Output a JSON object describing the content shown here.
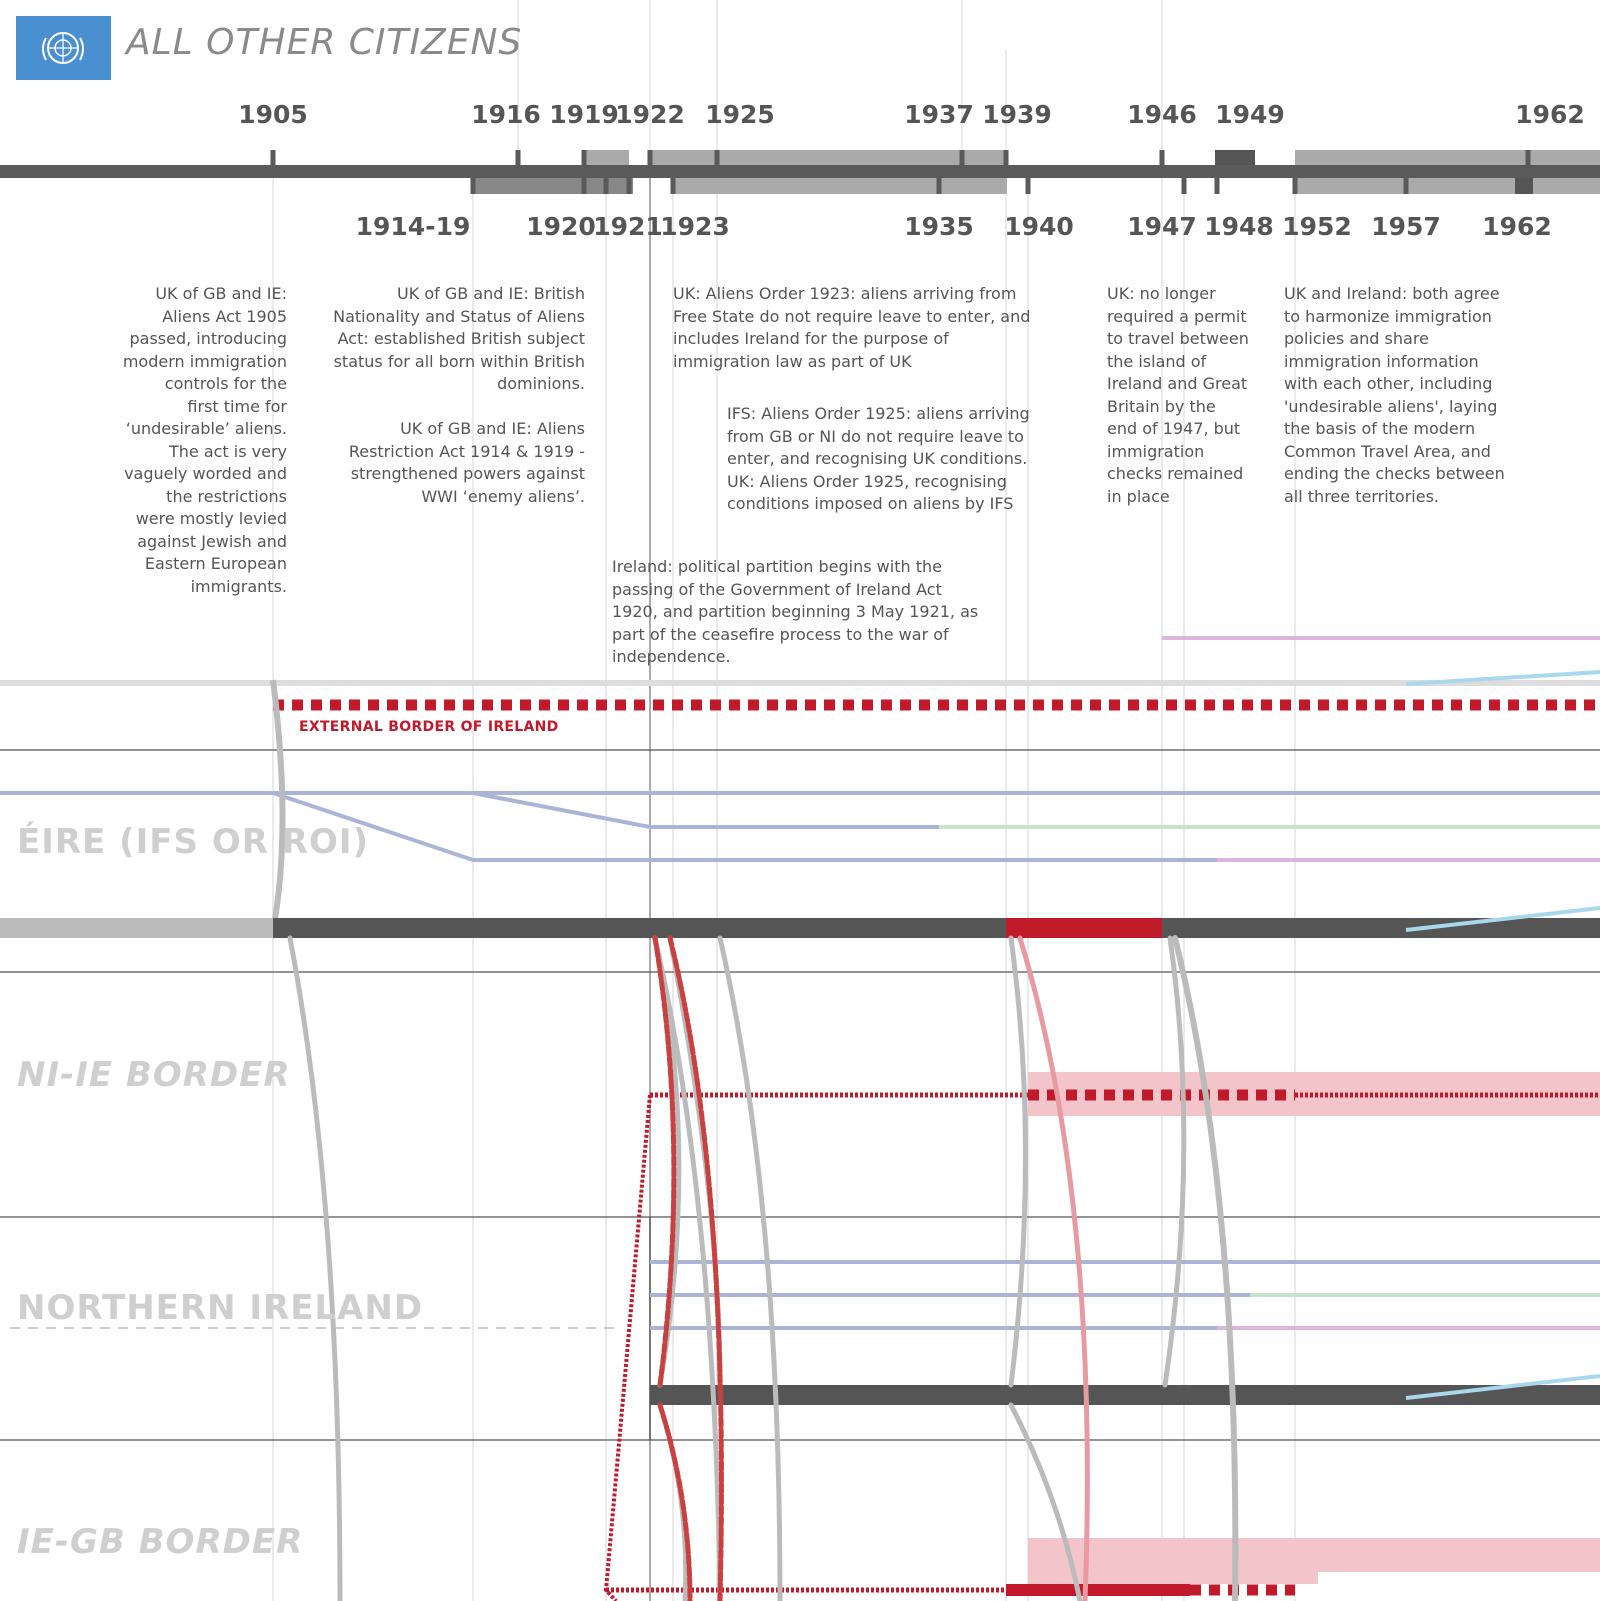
{
  "header": {
    "title": "ALL OTHER CITIZENS",
    "logo_icon": "un-emblem-icon",
    "logo_color": "#4a90d0"
  },
  "timeline": {
    "years_top": [
      "1905",
      "1916",
      "1919",
      "1922",
      "1925",
      "1937",
      "1939",
      "1946",
      "1949",
      "1962"
    ],
    "years_bottom": [
      "1914-19",
      "1920",
      "1921",
      "1923",
      "1935",
      "1940",
      "1947",
      "1948",
      "1952",
      "1957",
      "1962"
    ]
  },
  "notes": {
    "n1905": [
      "UK of GB and IE:",
      "Aliens Act 1905",
      "passed, introducing",
      "modern immigration",
      "controls for the",
      "first time for",
      "‘undesirable’ aliens.",
      "The act is very",
      "vaguely worded and",
      "the restrictions",
      "were mostly levied",
      "against Jewish and",
      "Eastern European",
      "immigrants."
    ],
    "n1914a": [
      "UK of GB and IE: British",
      "Nationality and Status of Aliens",
      "Act: established British subject",
      "status for all born within British",
      "dominions."
    ],
    "n1914b": [
      "UK of GB and IE: Aliens",
      "Restriction Act 1914 & 1919 -",
      "strengthened powers against",
      "WWI ‘enemy aliens’."
    ],
    "n1923": [
      "UK: Aliens Order 1923: aliens arriving from",
      "Free State do not require leave to enter, and",
      "includes Ireland for the purpose of",
      "immigration law as part of UK"
    ],
    "n1925": [
      "IFS: Aliens Order 1925: aliens arriving",
      "from GB or NI do not require leave to",
      "enter, and recognising UK conditions.",
      "UK: Aliens Order 1925, recognising",
      "conditions imposed on aliens by IFS"
    ],
    "n1920": [
      "Ireland: political partition begins with the",
      "passing of the Government of Ireland Act",
      "1920, and partition beginning 3 May 1921, as",
      "part of the ceasefire process to the war of",
      "independence."
    ],
    "n1947": [
      "UK: no longer",
      "required a permit",
      "to travel between",
      "the island of",
      "Ireland and Great",
      "Britain by the",
      "end of 1947, but",
      "immigration",
      "checks remained",
      "in place"
    ],
    "n1952": [
      "UK and Ireland: both agree",
      "to harmonize immigration",
      "policies and share",
      "immigration information",
      "with each other, including",
      "'undesirable aliens', laying",
      "the basis of the modern",
      "Common Travel Area, and",
      "ending the checks between",
      "all three territories."
    ]
  },
  "regions": {
    "external": "EXTERNAL BORDER OF IRELAND",
    "eire": "ÉIRE (IFS OR ROI)",
    "ni_ie": "NI-IE BORDER",
    "ni": "NORTHERN IRELAND",
    "ie_gb": "IE-GB BORDER"
  },
  "colors": {
    "axis": "#5a5a5a",
    "band": "#aaaaaa",
    "border_red": "#c01a2b",
    "pink": "#f3c4c9",
    "blue_line": "#aab4d6",
    "green_line": "#c6e4cc",
    "purple_line": "#d9b6dc",
    "cyan_line": "#a9d8ec",
    "grey_arc": "#bbbbbb"
  }
}
